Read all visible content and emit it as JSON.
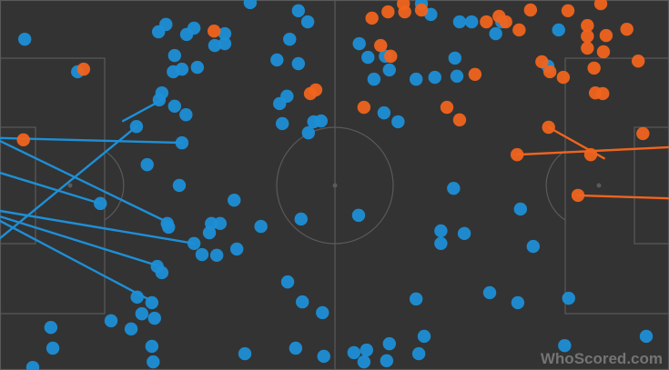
{
  "chart_data": {
    "type": "scatter",
    "xlim": [
      0,
      100
    ],
    "ylim": [
      0,
      100
    ],
    "watermark": "WhoScored.com",
    "series": [
      {
        "color": "#1e8fd6",
        "x": [
          3.7,
          24.8,
          23.7,
          29,
          27.9,
          32.1,
          33.6,
          33.6,
          37.4,
          44.6,
          46,
          43.3,
          26.1,
          25.9,
          29.5,
          27.2,
          11.6,
          24.2,
          23.8,
          26.1,
          27.8,
          41.4,
          44.6,
          42.9,
          41.8,
          42.2,
          46.9,
          48,
          46.1,
          22,
          26.8,
          35,
          25,
          25.2,
          31.6,
          32.9,
          31.3,
          39,
          45,
          53.6,
          29,
          30.2,
          32.4,
          35.4,
          23.5,
          24.2,
          43,
          45.2,
          48.2,
          20.5,
          22.7,
          21.2,
          23.1,
          16.6,
          19.6,
          7.6,
          7.9,
          22.7,
          22.9,
          4.9,
          36.6,
          44.2,
          48.4,
          52.9,
          54.4,
          54.8,
          58.2,
          57.8,
          62.6,
          63.4,
          62.2,
          73.2,
          77.4,
          85,
          84.4,
          96.6,
          65.9,
          65.9,
          69.4,
          77.8,
          79.7,
          67.8,
          53.7,
          55,
          57.6,
          58.2,
          55.9,
          62.2,
          65,
          68,
          68.3,
          70.5,
          74.1,
          75,
          81.9,
          83.5,
          57.4,
          59.5,
          63,
          64.4,
          68.7,
          20.4,
          27.2,
          15
        ],
        "y": [
          10.6,
          6.6,
          8.6,
          7.6,
          9.3,
          12.3,
          9.1,
          11.8,
          0.7,
          2.9,
          5.9,
          10.6,
          15,
          19.4,
          18.2,
          18.7,
          19.4,
          25.1,
          27,
          28.7,
          31,
          16.2,
          17.2,
          26,
          28,
          33.4,
          32.9,
          32.7,
          35.9,
          44.5,
          50.1,
          54.1,
          60.4,
          61.4,
          60.4,
          60.4,
          62.9,
          61.2,
          59.2,
          58.2,
          65.8,
          68.8,
          69,
          67.3,
          72,
          73.7,
          76.2,
          81.6,
          84.5,
          80.3,
          81.8,
          84.8,
          86,
          86.7,
          88.9,
          88.5,
          94.1,
          93.6,
          97.8,
          99.3,
          95.6,
          94.1,
          96.3,
          95.3,
          97.8,
          94.6,
          92.9,
          97.5,
          95.6,
          90.9,
          80.8,
          79.1,
          81.8,
          80.6,
          93.4,
          90.9,
          62.4,
          65.8,
          63.1,
          56.5,
          66.6,
          50.9,
          11.8,
          15.5,
          15.2,
          18.9,
          21.4,
          21.4,
          20.9,
          15.7,
          20.6,
          5.9,
          9.1,
          5.9,
          17.9,
          8.1,
          30.5,
          32.9,
          1,
          3.9,
          5.9,
          34.2,
          38.6,
          55
        ]
      },
      {
        "color": "#f0641e",
        "x": [
          55.6,
          58,
          60.3,
          60.5,
          63,
          72.7,
          74.6,
          75.6,
          77.6,
          79.3,
          84.9,
          87.8,
          89.8,
          90.6,
          93.7,
          87.8,
          87.8,
          90.2,
          95.4,
          88.8,
          84.2,
          81,
          82.2,
          71,
          56.9,
          58.4,
          47.2,
          46.4,
          54.4,
          66.8,
          68.7,
          89,
          90.1,
          82,
          96.1,
          3.5,
          12.5,
          32,
          77.3,
          88.3,
          86.4
        ],
        "y": [
          4.9,
          3.2,
          1,
          3.2,
          2.7,
          5.9,
          4.4,
          5.9,
          8.1,
          2.7,
          2.9,
          6.9,
          1,
          9.6,
          7.9,
          9.8,
          13,
          14,
          16.5,
          18.4,
          20.9,
          16.7,
          19.4,
          20.1,
          12.3,
          15.2,
          24.3,
          25.3,
          29,
          29,
          32.4,
          25.1,
          25.3,
          34.4,
          36.1,
          37.8,
          18.7,
          8.4,
          41.8,
          41.8,
          52.8
        ]
      }
    ],
    "passes": [
      {
        "color": "#1e8fd6",
        "x": [
          0,
          0,
          0,
          0,
          0,
          0,
          0,
          18.4
        ],
        "y": [
          37.3,
          38.1,
          46.7,
          57,
          58.5,
          59.7,
          64.4,
          32.7
        ],
        "end_x": [
          27.2,
          25.2,
          15,
          29,
          23.4,
          22.4,
          20.4,
          24.2
        ],
        "end_y": [
          38.6,
          60.2,
          55,
          65.8,
          71.7,
          81.1,
          34.2,
          27
        ]
      },
      {
        "color": "#f0641e",
        "x": [
          82,
          77.3,
          86.4
        ],
        "y": [
          34.4,
          41.8,
          52.8
        ],
        "end_x": [
          90.3,
          100,
          100
        ],
        "end_y": [
          42.8,
          39.8,
          53.6
        ]
      }
    ]
  }
}
